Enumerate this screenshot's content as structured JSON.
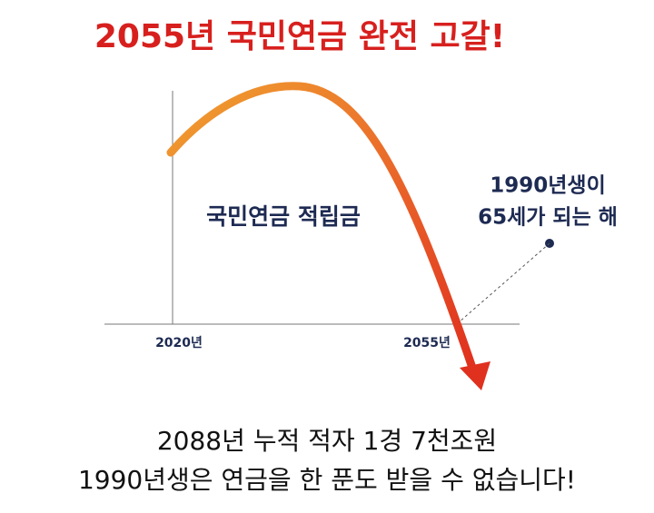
{
  "title": "2055년 국민연금 완전 고갈!",
  "axis": {
    "start_label": "2020년",
    "end_label": "2055년"
  },
  "series_label": "국민연금 적립금",
  "annotation": [
    "1990년생이",
    "65세가 되는 해"
  ],
  "footer": [
    "2088년 누적 적자 1경 7천조원",
    "1990년생은 연금을 한 푼도 받을 수 없습니다!"
  ]
}
